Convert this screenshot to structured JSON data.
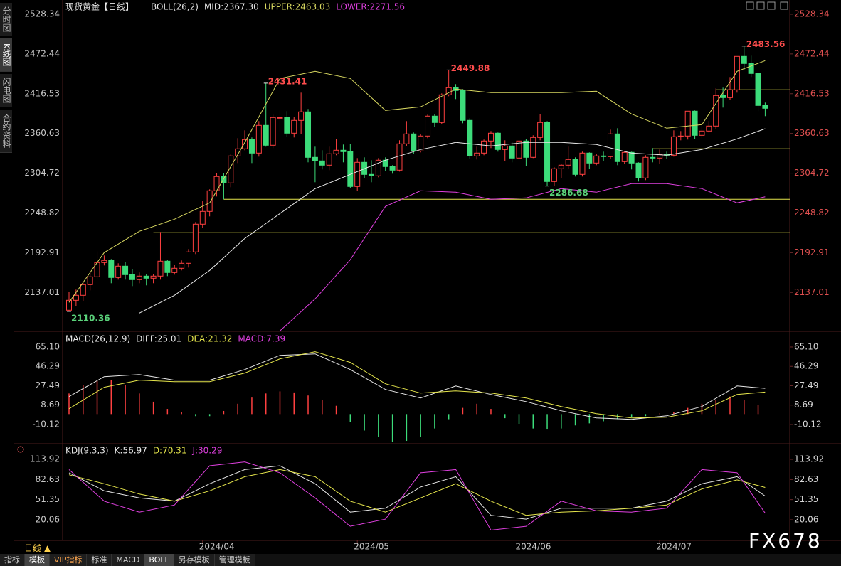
{
  "ui": {
    "sidebar": [
      "分时图",
      "K线图",
      "闪电图",
      "合约资料"
    ],
    "period": "日线",
    "tabs": [
      "指标",
      "模板",
      "VIP指标",
      "标准",
      "MACD",
      "BOLL",
      "另存模板",
      "管理模板"
    ],
    "watermark": "FX678"
  },
  "chart_data": [
    {
      "type": "candlestick",
      "title": "现货黄金【日线】",
      "indicator": "BOLL(26,2)",
      "readouts": [
        {
          "text": "MID:2367.30",
          "color": "#e8e8e8"
        },
        {
          "text": "UPPER:2463.03",
          "color": "#d8d860"
        },
        {
          "text": "LOWER:2271.56",
          "color": "#e040e0"
        }
      ],
      "xlim": [
        -0.91,
        102.5
      ],
      "ylim": [
        2083.3,
        2543.3
      ],
      "yticks": [
        2137.01,
        2192.91,
        2248.82,
        2304.72,
        2360.63,
        2416.53,
        2472.44,
        2528.34
      ],
      "grid": false,
      "up_color": "#ff4040",
      "down_color": "#3cdc7a",
      "ohlc": [
        [
          2112,
          2138,
          2110.36,
          2126
        ],
        [
          2126,
          2141,
          2118,
          2133
        ],
        [
          2133,
          2152,
          2125,
          2148
        ],
        [
          2148,
          2165,
          2140,
          2159
        ],
        [
          2159,
          2195,
          2155,
          2179
        ],
        [
          2179,
          2189,
          2175,
          2182
        ],
        [
          2182,
          2184,
          2150,
          2158
        ],
        [
          2158,
          2178,
          2155,
          2174
        ],
        [
          2174,
          2180,
          2155,
          2162
        ],
        [
          2162,
          2170,
          2146,
          2155
        ],
        [
          2155,
          2165,
          2150,
          2160
        ],
        [
          2160,
          2163,
          2147,
          2157
        ],
        [
          2157,
          2163,
          2150,
          2160
        ],
        [
          2160,
          2222,
          2155,
          2181
        ],
        [
          2181,
          2183,
          2160,
          2165
        ],
        [
          2165,
          2176,
          2162,
          2171
        ],
        [
          2171,
          2182,
          2168,
          2178
        ],
        [
          2178,
          2198,
          2172,
          2194
        ],
        [
          2194,
          2236,
          2191,
          2233
        ],
        [
          2233,
          2266,
          2228,
          2251
        ],
        [
          2251,
          2282,
          2244,
          2280
        ],
        [
          2280,
          2305,
          2272,
          2300
        ],
        [
          2300,
          2305,
          2268,
          2291
        ],
        [
          2291,
          2331,
          2285,
          2329
        ],
        [
          2329,
          2354,
          2319,
          2339
        ],
        [
          2339,
          2365,
          2337,
          2352
        ],
        [
          2352,
          2355,
          2319,
          2333
        ],
        [
          2333,
          2378,
          2328,
          2372
        ],
        [
          2372,
          2431.41,
          2342,
          2344
        ],
        [
          2344,
          2387,
          2340,
          2383
        ],
        [
          2383,
          2393,
          2362,
          2383
        ],
        [
          2383,
          2392,
          2356,
          2361
        ],
        [
          2361,
          2384,
          2355,
          2379
        ],
        [
          2379,
          2418,
          2360,
          2391
        ],
        [
          2391,
          2395,
          2320,
          2327
        ],
        [
          2327,
          2342,
          2292,
          2322
        ],
        [
          2322,
          2337,
          2310,
          2316
        ],
        [
          2316,
          2342,
          2309,
          2332
        ],
        [
          2332,
          2353,
          2330,
          2337
        ],
        [
          2337,
          2345,
          2320,
          2335
        ],
        [
          2335,
          2346,
          2284,
          2286
        ],
        [
          2286,
          2326,
          2280,
          2320
        ],
        [
          2320,
          2327,
          2298,
          2303
        ],
        [
          2303,
          2323,
          2292,
          2301
        ],
        [
          2301,
          2326,
          2299,
          2323
        ],
        [
          2323,
          2327,
          2308,
          2314
        ],
        [
          2314,
          2316,
          2304,
          2309
        ],
        [
          2309,
          2351,
          2307,
          2346
        ],
        [
          2346,
          2378,
          2343,
          2360
        ],
        [
          2360,
          2362,
          2332,
          2336
        ],
        [
          2336,
          2360,
          2334,
          2357
        ],
        [
          2357,
          2387,
          2354,
          2385
        ],
        [
          2385,
          2388,
          2370,
          2376
        ],
        [
          2376,
          2417,
          2374,
          2415
        ],
        [
          2415,
          2449.88,
          2413,
          2425
        ],
        [
          2425,
          2430,
          2409,
          2421
        ],
        [
          2421,
          2423,
          2375,
          2379
        ],
        [
          2379,
          2382,
          2325,
          2329
        ],
        [
          2329,
          2342,
          2324,
          2333
        ],
        [
          2333,
          2352,
          2330,
          2350
        ],
        [
          2350,
          2364,
          2340,
          2361
        ],
        [
          2361,
          2362,
          2335,
          2338
        ],
        [
          2338,
          2351,
          2322,
          2343
        ],
        [
          2343,
          2348,
          2320,
          2326
        ],
        [
          2326,
          2354,
          2322,
          2350
        ],
        [
          2350,
          2353,
          2315,
          2327
        ],
        [
          2327,
          2358,
          2326,
          2355
        ],
        [
          2355,
          2388,
          2351,
          2376
        ],
        [
          2376,
          2378,
          2286.68,
          2293
        ],
        [
          2293,
          2313,
          2287,
          2311
        ],
        [
          2311,
          2318,
          2298,
          2316
        ],
        [
          2316,
          2342,
          2311,
          2324
        ],
        [
          2324,
          2327,
          2300,
          2303
        ],
        [
          2303,
          2335,
          2300,
          2333
        ],
        [
          2333,
          2334,
          2311,
          2319
        ],
        [
          2319,
          2332,
          2316,
          2329
        ],
        [
          2329,
          2335,
          2322,
          2328
        ],
        [
          2328,
          2366,
          2325,
          2360
        ],
        [
          2360,
          2368,
          2316,
          2321
        ],
        [
          2321,
          2336,
          2318,
          2334
        ],
        [
          2334,
          2335,
          2310,
          2319
        ],
        [
          2319,
          2320,
          2293,
          2298
        ],
        [
          2298,
          2330,
          2295,
          2327
        ],
        [
          2327,
          2340,
          2320,
          2326
        ],
        [
          2326,
          2338,
          2318,
          2331
        ],
        [
          2331,
          2335,
          2325,
          2330
        ],
        [
          2330,
          2365,
          2328,
          2356
        ],
        [
          2356,
          2364,
          2351,
          2357
        ],
        [
          2357,
          2392,
          2352,
          2392
        ],
        [
          2392,
          2393,
          2353,
          2358
        ],
        [
          2358,
          2372,
          2354,
          2364
        ],
        [
          2364,
          2378,
          2362,
          2371
        ],
        [
          2371,
          2424,
          2367,
          2414
        ],
        [
          2414,
          2425,
          2397,
          2411
        ],
        [
          2411,
          2440,
          2408,
          2422
        ],
        [
          2422,
          2469,
          2418,
          2469
        ],
        [
          2469,
          2483.56,
          2450,
          2459
        ],
        [
          2459,
          2470,
          2440,
          2445
        ],
        [
          2445,
          2445,
          2392,
          2400
        ],
        [
          2400,
          2404,
          2385,
          2396
        ]
      ],
      "lines_x": [
        0,
        5,
        10,
        15,
        20,
        25,
        30,
        35,
        40,
        45,
        50,
        55,
        60,
        65,
        70,
        75,
        80,
        85,
        90,
        95,
        99
      ],
      "series": [
        {
          "color": "#d8d860",
          "values": [
            2123,
            2193,
            2223,
            2240,
            2263,
            2348,
            2438,
            2448,
            2438,
            2393,
            2398,
            2423,
            2418,
            2418,
            2418,
            2420,
            2388,
            2368,
            2373,
            2448,
            2463.03
          ]
        },
        {
          "color": "#e8e8e8",
          "values": [
            null,
            null,
            2108,
            2133,
            2168,
            2213,
            2248,
            2283,
            2303,
            2323,
            2338,
            2348,
            2343,
            2348,
            2348,
            2345,
            2333,
            2330,
            2338,
            2353,
            2367.3
          ]
        },
        {
          "color": "#e040e0",
          "values": [
            null,
            null,
            null,
            null,
            null,
            null,
            2083,
            2128,
            2183,
            2258,
            2280,
            2278,
            2268,
            2270,
            2283,
            2278,
            2290,
            2290,
            2283,
            2263,
            2271.56
          ]
        }
      ],
      "levels": [
        {
          "from": 12,
          "value": 2221,
          "color": "#e6e64c"
        },
        {
          "from": 22,
          "value": 2268,
          "color": "#e6e64c"
        },
        {
          "from": 83,
          "value": 2339,
          "color": "#e6e64c"
        },
        {
          "from": 92,
          "value": 2422,
          "color": "#e6e64c"
        }
      ],
      "annotations": [
        {
          "x": 28,
          "y": 2431.41,
          "kind": "high",
          "color": "#ff4d4d"
        },
        {
          "x": 54,
          "y": 2449.88,
          "kind": "high",
          "color": "#ff4d4d"
        },
        {
          "x": 96,
          "y": 2483.56,
          "kind": "high",
          "color": "#ff4d4d"
        },
        {
          "x": 0,
          "y": 2110.36,
          "kind": "low",
          "color": "#5ad27a"
        },
        {
          "x": 68,
          "y": 2286.68,
          "kind": "low",
          "color": "#5ad27a"
        }
      ]
    },
    {
      "type": "macd",
      "indicator": "MACD(26,12,9)",
      "readouts": [
        {
          "text": "DIFF:25.01",
          "color": "#e8e8e8"
        },
        {
          "text": "DEA:21.32",
          "color": "#e6e64c"
        },
        {
          "text": "MACD:7.39",
          "color": "#e040e0"
        }
      ],
      "xlim": [
        -0.91,
        102.5
      ],
      "ylim": [
        -26.0,
        77.5
      ],
      "yticks": [
        {
          "value": 65.1,
          "label": "65.10"
        },
        46.29,
        27.49,
        8.69,
        -10.12
      ],
      "lines_x": [
        0,
        5,
        10,
        15,
        20,
        25,
        30,
        35,
        40,
        45,
        50,
        55,
        60,
        65,
        70,
        75,
        80,
        85,
        90,
        95,
        99
      ],
      "series": [
        {
          "color": "#e8e8e8",
          "values": [
            17,
            36.3,
            38.4,
            32.9,
            32.9,
            43.2,
            57,
            58.4,
            43.2,
            23.9,
            15.6,
            27.3,
            19,
            12.1,
            3.2,
            -3.8,
            -5.1,
            -1.7,
            7.3,
            27.3,
            25.01
          ]
        },
        {
          "color": "#e6e64c",
          "values": [
            5.2,
            26,
            32.9,
            31.5,
            31.5,
            39.8,
            53.6,
            60.5,
            50.2,
            29.4,
            20.4,
            22.5,
            20.4,
            15.6,
            7.3,
            0.4,
            -3.8,
            -3.1,
            3.2,
            19,
            21.32
          ]
        }
      ],
      "bars_x": [
        0,
        2,
        4,
        6,
        8,
        10,
        12,
        14,
        16,
        18,
        20,
        22,
        24,
        26,
        28,
        30,
        32,
        34,
        36,
        38,
        40,
        42,
        44,
        46,
        48,
        50,
        52,
        54,
        56,
        58,
        60,
        62,
        64,
        66,
        68,
        70,
        72,
        74,
        76,
        78,
        80,
        82,
        84,
        86,
        88,
        90,
        92,
        94,
        96,
        98
      ],
      "bars": [
        20,
        28,
        32,
        33,
        28,
        20,
        12,
        5,
        2,
        -2,
        -2,
        3,
        10,
        16,
        20,
        22,
        21,
        18,
        14,
        8,
        -8,
        -16,
        -22,
        -27,
        -26,
        -22,
        -14,
        -5,
        6,
        10,
        5,
        -4,
        -10,
        -14,
        -15,
        -14,
        -11,
        -9,
        -7,
        -5,
        -3,
        -2,
        0.5,
        2,
        6,
        10,
        14,
        17,
        14,
        9
      ],
      "up_color": "#ff4040",
      "down_color": "#3cdc7a"
    },
    {
      "type": "kdj",
      "indicator": "KDJ(9,3,3)",
      "readouts": [
        {
          "text": "K:56.97",
          "color": "#e8e8e8"
        },
        {
          "text": "D:70.31",
          "color": "#e6e64c"
        },
        {
          "text": "J:30.29",
          "color": "#e040e0"
        }
      ],
      "xlim": [
        -0.91,
        102.5
      ],
      "ylim": [
        -12.0,
        131.6
      ],
      "yticks": [
        113.92,
        82.63,
        51.35,
        20.06
      ],
      "xticks": [
        {
          "value": 19,
          "label": "2024/04"
        },
        {
          "value": 41,
          "label": "2024/05"
        },
        {
          "value": 64,
          "label": "2024/06"
        },
        {
          "value": 84,
          "label": "2024/07"
        }
      ],
      "lines_x": [
        0,
        5,
        10,
        15,
        20,
        25,
        30,
        35,
        40,
        45,
        50,
        55,
        60,
        65,
        70,
        75,
        80,
        85,
        90,
        95,
        99
      ],
      "series": [
        {
          "color": "#e8e8e8",
          "values": [
            93,
            65,
            54,
            49,
            76,
            98,
            104,
            76,
            32,
            38,
            71,
            87,
            27,
            21,
            38,
            38,
            38,
            49,
            76,
            87,
            56.97
          ]
        },
        {
          "color": "#e6e64c",
          "values": [
            90,
            76,
            60,
            49,
            65,
            87,
            98,
            87,
            49,
            32,
            54,
            76,
            49,
            27,
            32,
            34,
            38,
            43,
            68,
            82,
            70.31
          ]
        },
        {
          "color": "#e040e0",
          "values": [
            98,
            49,
            32,
            43,
            104,
            110,
            93,
            54,
            10,
            21,
            93,
            98,
            4,
            10,
            49,
            34,
            32,
            38,
            98,
            93,
            30.29
          ]
        }
      ]
    }
  ]
}
